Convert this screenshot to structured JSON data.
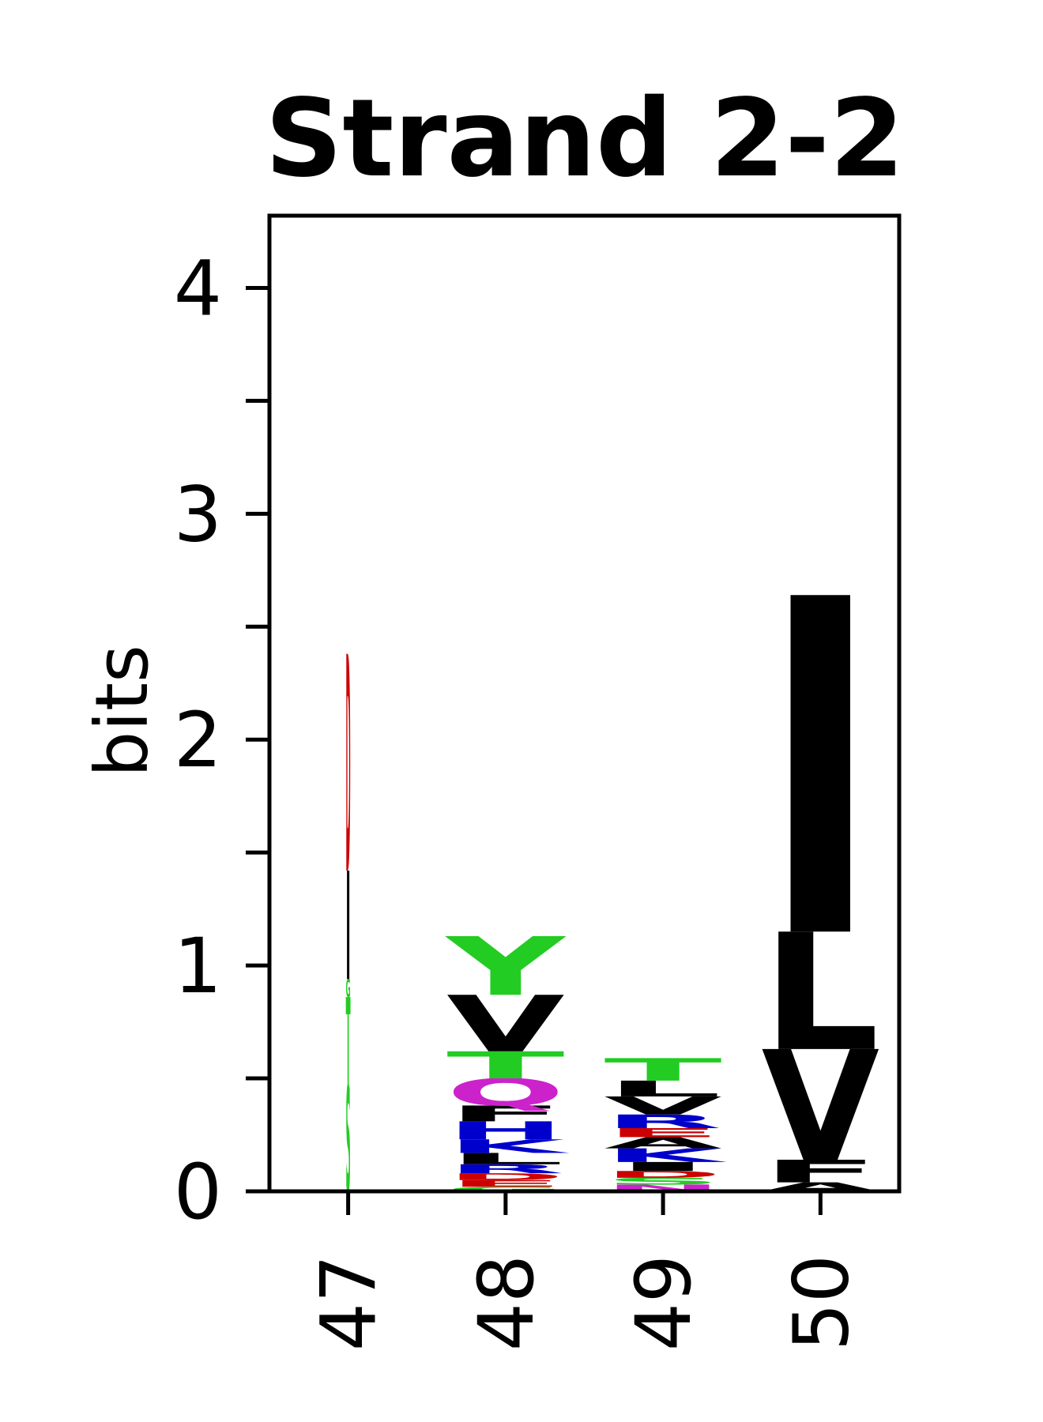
{
  "chart_data": {
    "type": "logo",
    "title": "Strand 2-2",
    "y_label": "bits",
    "categories": [
      "47",
      "48",
      "49",
      "50"
    ],
    "weights": [
      0.04,
      1,
      1,
      1
    ],
    "stacks": [
      [
        {
          "letter": "S",
          "bits": 0.47,
          "color": "#22cc22"
        },
        {
          "letter": "T",
          "bits": 0.39,
          "color": "#22cc22"
        },
        {
          "letter": "G",
          "bits": 0.08,
          "color": "#22cc22"
        },
        {
          "letter": "I",
          "bits": 0.48,
          "color": "#000000"
        },
        {
          "letter": "D",
          "bits": 0.96,
          "color": "#cc0000"
        }
      ],
      [
        {
          "letter": "G",
          "bits": 0.02,
          "color": "#22cc22"
        },
        {
          "letter": "E",
          "bits": 0.03,
          "color": "#cc0000"
        },
        {
          "letter": "D",
          "bits": 0.03,
          "color": "#cc0000"
        },
        {
          "letter": "R",
          "bits": 0.04,
          "color": "#0000cc"
        },
        {
          "letter": "L",
          "bits": 0.05,
          "color": "#000000"
        },
        {
          "letter": "K",
          "bits": 0.06,
          "color": "#0000cc"
        },
        {
          "letter": "H",
          "bits": 0.08,
          "color": "#0000cc"
        },
        {
          "letter": "F",
          "bits": 0.07,
          "color": "#000000"
        },
        {
          "letter": "Q",
          "bits": 0.12,
          "color": "#cc22cc"
        },
        {
          "letter": "T",
          "bits": 0.12,
          "color": "#22cc22"
        },
        {
          "letter": "V",
          "bits": 0.25,
          "color": "#000000"
        },
        {
          "letter": "Y",
          "bits": 0.26,
          "color": "#22cc22"
        }
      ],
      [
        {
          "letter": "N",
          "bits": 0.03,
          "color": "#cc22cc"
        },
        {
          "letter": "S",
          "bits": 0.03,
          "color": "#22cc22"
        },
        {
          "letter": "D",
          "bits": 0.03,
          "color": "#cc0000"
        },
        {
          "letter": "I",
          "bits": 0.04,
          "color": "#000000"
        },
        {
          "letter": "K",
          "bits": 0.06,
          "color": "#0000cc"
        },
        {
          "letter": "A",
          "bits": 0.05,
          "color": "#000000"
        },
        {
          "letter": "E",
          "bits": 0.04,
          "color": "#cc0000"
        },
        {
          "letter": "R",
          "bits": 0.06,
          "color": "#0000cc"
        },
        {
          "letter": "V",
          "bits": 0.08,
          "color": "#000000"
        },
        {
          "letter": "L",
          "bits": 0.07,
          "color": "#000000"
        },
        {
          "letter": "T",
          "bits": 0.1,
          "color": "#22cc22"
        }
      ],
      [
        {
          "letter": "A",
          "bits": 0.04,
          "color": "#000000"
        },
        {
          "letter": "F",
          "bits": 0.1,
          "color": "#000000"
        },
        {
          "letter": "V",
          "bits": 0.49,
          "color": "#000000"
        },
        {
          "letter": "L",
          "bits": 0.52,
          "color": "#000000"
        },
        {
          "letter": "I",
          "bits": 1.49,
          "color": "#000000"
        }
      ]
    ],
    "ylim": [
      0,
      4.32
    ],
    "yticks": [
      0,
      1,
      2,
      3,
      4
    ],
    "yminor_ticks": [
      0.5,
      1.5,
      2.5,
      3.5
    ]
  }
}
